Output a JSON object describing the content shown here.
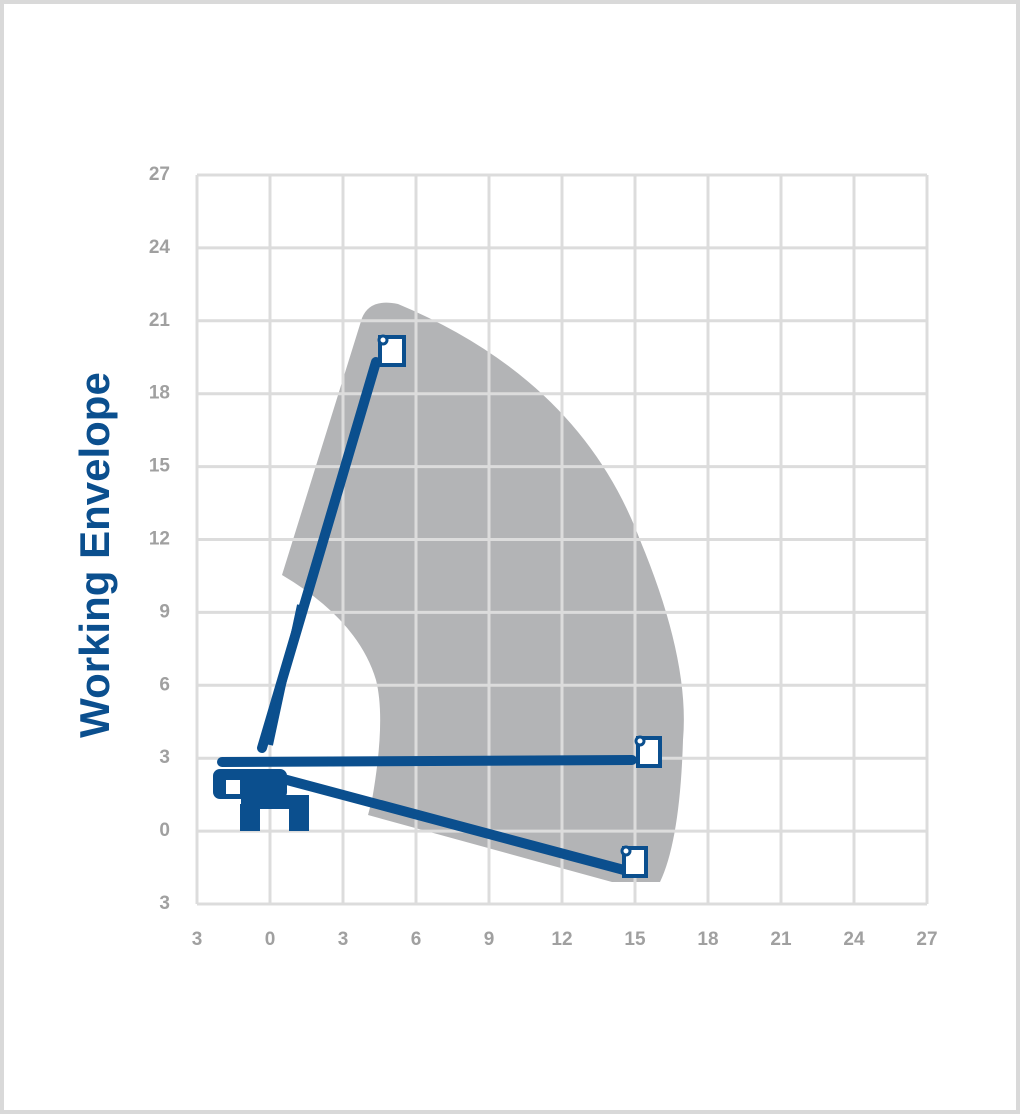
{
  "chart_data": {
    "type": "envelope",
    "title": "Working Envelope",
    "xlim": [
      -3,
      27
    ],
    "ylim": [
      -3,
      27
    ],
    "xticks": [
      {
        "value": -3,
        "label": "3"
      },
      0,
      3,
      6,
      9,
      12,
      15,
      18,
      21,
      24,
      27
    ],
    "yticks": [
      {
        "value": -3,
        "label": "3"
      },
      0,
      3,
      6,
      9,
      12,
      15,
      18,
      21,
      24,
      27
    ],
    "grid": true,
    "color": "#b3b4b6",
    "title_color": "#0b4f8e"
  }
}
